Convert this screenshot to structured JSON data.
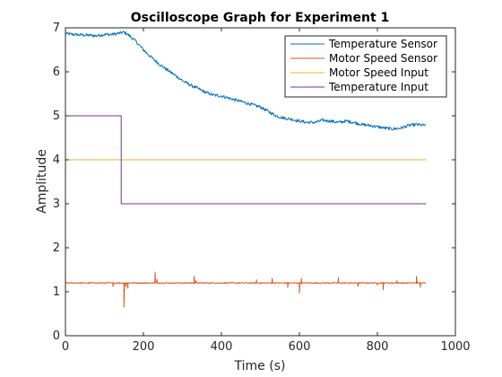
{
  "chart_data": {
    "type": "line",
    "title": "Oscilloscope Graph for Experiment 1",
    "xlabel": "Time (s)",
    "ylabel": "Amplitude",
    "xlim": [
      0,
      1000
    ],
    "ylim": [
      0,
      7
    ],
    "xticks": [
      0,
      200,
      400,
      600,
      800,
      1000
    ],
    "yticks": [
      0,
      1,
      2,
      3,
      4,
      5,
      6,
      7
    ],
    "legend_position": "top-right",
    "grid": false,
    "series": [
      {
        "name": "Temperature Sensor",
        "color": "#0072BD",
        "x": [
          0,
          20,
          40,
          60,
          80,
          100,
          120,
          140,
          150,
          160,
          180,
          200,
          220,
          240,
          260,
          280,
          300,
          320,
          340,
          360,
          380,
          400,
          420,
          440,
          460,
          480,
          500,
          520,
          540,
          560,
          580,
          600,
          620,
          640,
          660,
          680,
          700,
          720,
          740,
          760,
          780,
          800,
          820,
          840,
          860,
          880,
          900,
          925
        ],
        "y": [
          6.87,
          6.85,
          6.84,
          6.83,
          6.82,
          6.85,
          6.85,
          6.88,
          6.9,
          6.85,
          6.7,
          6.5,
          6.33,
          6.18,
          6.05,
          5.93,
          5.8,
          5.7,
          5.62,
          5.53,
          5.47,
          5.45,
          5.4,
          5.35,
          5.3,
          5.25,
          5.2,
          5.1,
          5.0,
          4.95,
          4.92,
          4.88,
          4.85,
          4.85,
          4.9,
          4.88,
          4.85,
          4.88,
          4.85,
          4.8,
          4.78,
          4.75,
          4.72,
          4.7,
          4.72,
          4.78,
          4.8,
          4.78
        ],
        "noise": 0.035
      },
      {
        "name": "Motor Speed Sensor",
        "color": "#D95319",
        "x": [
          0,
          925
        ],
        "y": [
          1.2,
          1.2
        ],
        "noise": 0.012,
        "spikes": [
          [
            122,
            1.12
          ],
          [
            150,
            0.65
          ],
          [
            155,
            1.12
          ],
          [
            160,
            1.08
          ],
          [
            230,
            1.45
          ],
          [
            235,
            1.28
          ],
          [
            330,
            1.35
          ],
          [
            335,
            1.25
          ],
          [
            490,
            1.27
          ],
          [
            530,
            1.3
          ],
          [
            570,
            1.1
          ],
          [
            600,
            0.97
          ],
          [
            605,
            1.3
          ],
          [
            700,
            1.32
          ],
          [
            750,
            1.12
          ],
          [
            800,
            1.15
          ],
          [
            815,
            1.05
          ],
          [
            850,
            1.25
          ],
          [
            900,
            1.35
          ],
          [
            910,
            1.1
          ]
        ]
      },
      {
        "name": "Motor Speed Input",
        "color": "#EDB120",
        "x": [
          0,
          925
        ],
        "y": [
          4,
          4
        ]
      },
      {
        "name": "Temperature Input",
        "color": "#7E2F8E",
        "x": [
          0,
          143,
          143,
          925
        ],
        "y": [
          5,
          5,
          3,
          3
        ]
      }
    ]
  }
}
